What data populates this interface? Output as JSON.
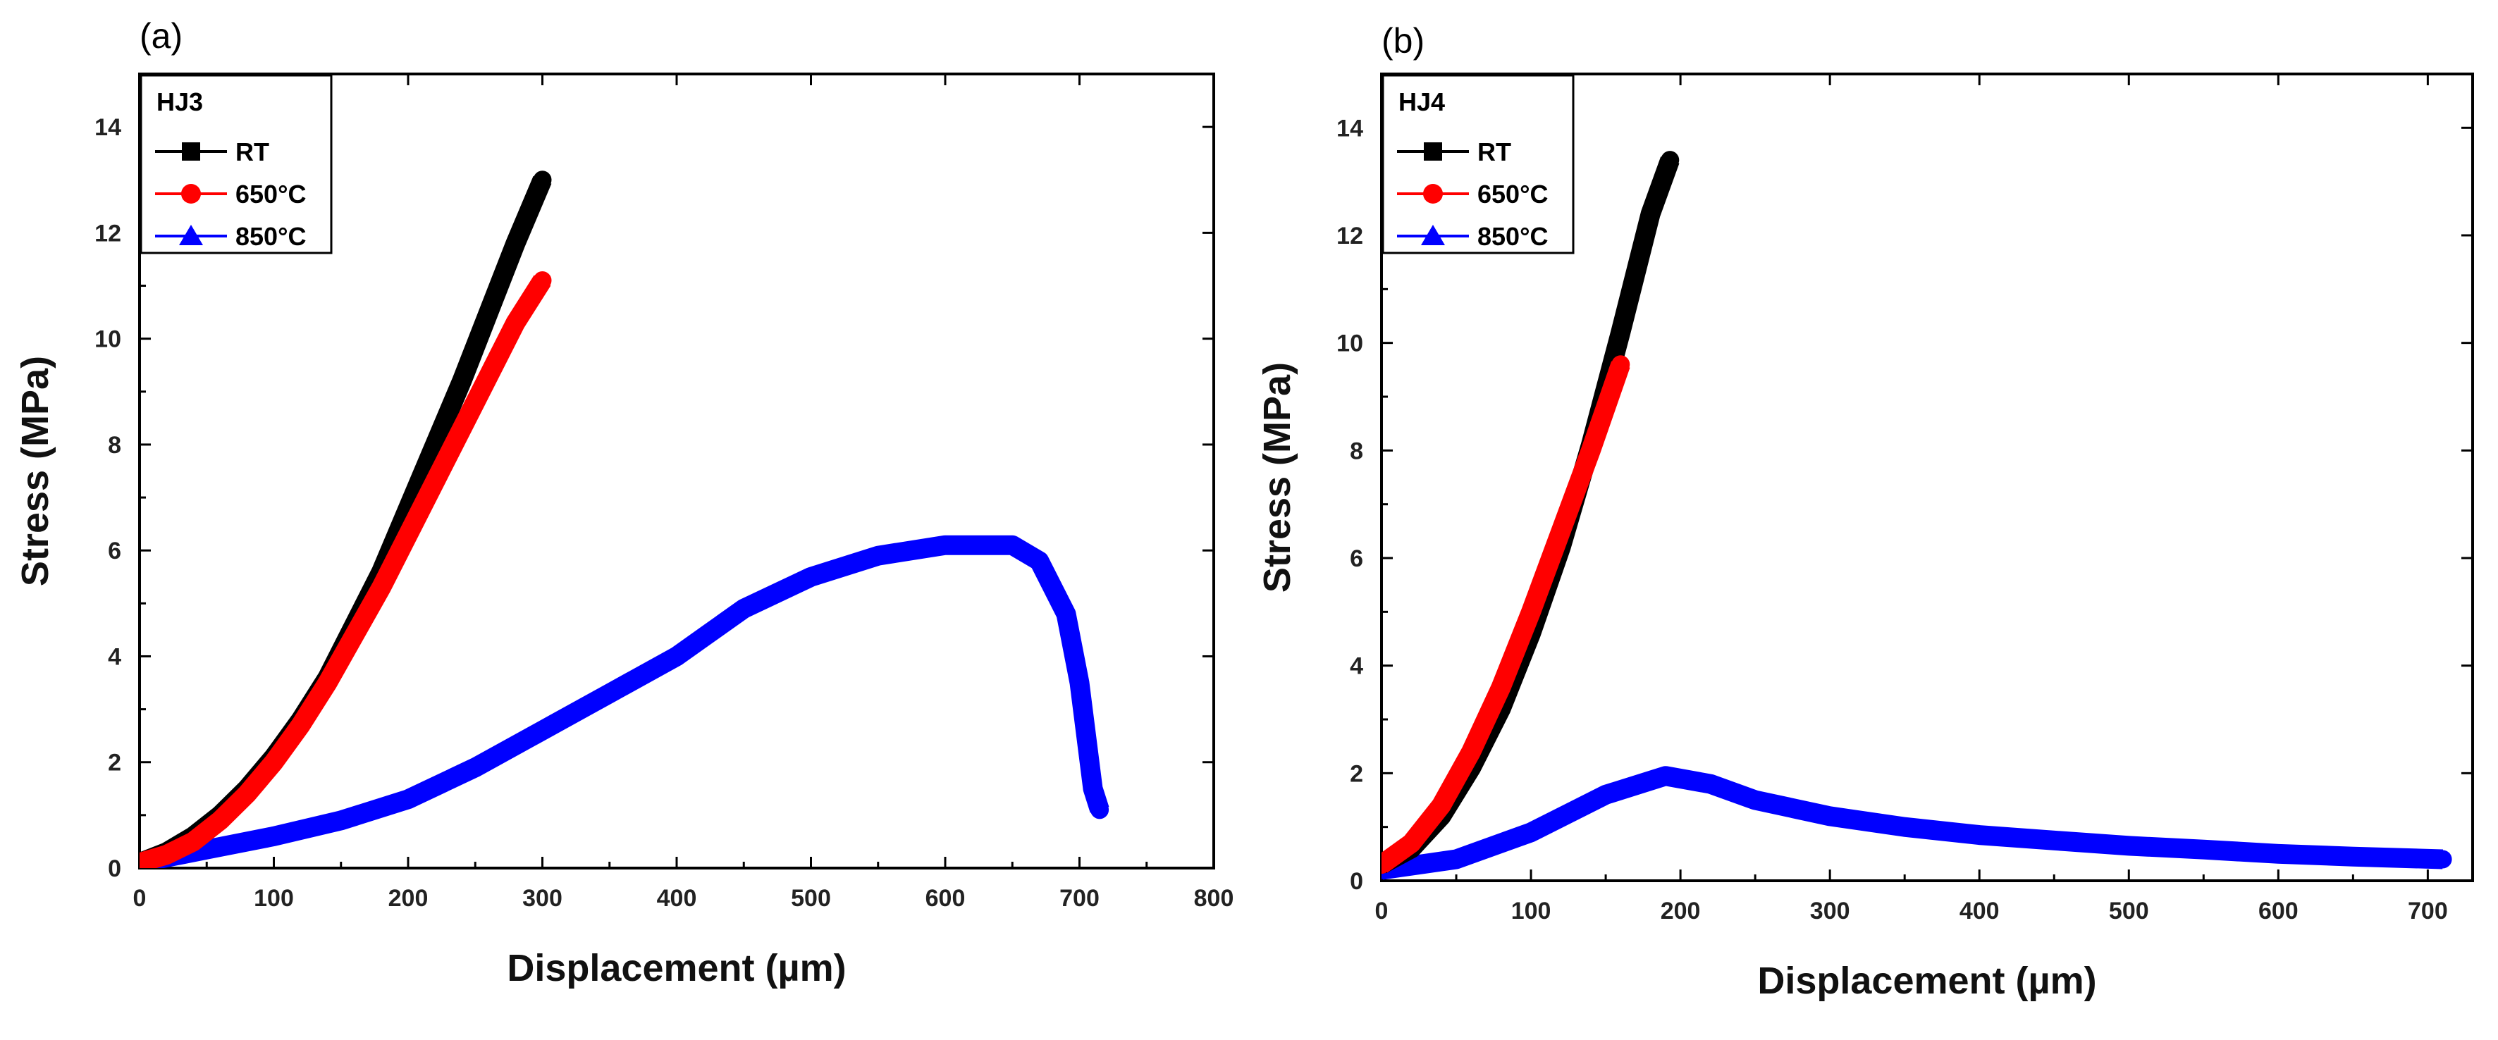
{
  "chart_data": [
    {
      "type": "line",
      "panel_label": "(a)",
      "legend_title": "HJ3",
      "xlabel": "Displacement (µm)",
      "ylabel": "Stress (MPa)",
      "xlim": [
        0,
        800
      ],
      "ylim": [
        0,
        15
      ],
      "xticks": [
        0,
        100,
        200,
        300,
        400,
        500,
        600,
        700,
        800
      ],
      "yticks": [
        0,
        2,
        4,
        6,
        8,
        10,
        12,
        14
      ],
      "legend_placement": "top-left",
      "grid": false,
      "series": [
        {
          "name": "RT",
          "color": "#000000",
          "marker": "square",
          "x": [
            0,
            20,
            40,
            60,
            80,
            100,
            120,
            140,
            160,
            180,
            200,
            220,
            240,
            260,
            280,
            300
          ],
          "y": [
            0.1,
            0.3,
            0.6,
            1.0,
            1.5,
            2.1,
            2.8,
            3.6,
            4.6,
            5.6,
            6.8,
            8.0,
            9.2,
            10.5,
            11.8,
            13.0
          ]
        },
        {
          "name": "650°C",
          "color": "#ff0000",
          "marker": "circle",
          "x": [
            0,
            20,
            40,
            60,
            80,
            100,
            120,
            140,
            160,
            180,
            200,
            220,
            240,
            260,
            280,
            300
          ],
          "y": [
            0.1,
            0.25,
            0.5,
            0.9,
            1.4,
            2.0,
            2.7,
            3.5,
            4.4,
            5.3,
            6.3,
            7.3,
            8.3,
            9.3,
            10.3,
            11.1
          ]
        },
        {
          "name": "850°C",
          "color": "#0000ff",
          "marker": "triangle",
          "x": [
            0,
            50,
            100,
            150,
            200,
            250,
            300,
            350,
            400,
            450,
            500,
            550,
            600,
            650,
            670,
            690,
            700,
            705,
            710,
            715
          ],
          "y": [
            0.1,
            0.35,
            0.6,
            0.9,
            1.3,
            1.9,
            2.6,
            3.3,
            4.0,
            4.9,
            5.5,
            5.9,
            6.1,
            6.1,
            5.8,
            4.8,
            3.5,
            2.5,
            1.5,
            1.1
          ]
        }
      ]
    },
    {
      "type": "line",
      "panel_label": "(b)",
      "legend_title": "HJ4",
      "xlabel": "Displacement (µm)",
      "ylabel": "Stress (MPa)",
      "xlim": [
        0,
        730
      ],
      "ylim": [
        0,
        15
      ],
      "xticks": [
        0,
        100,
        200,
        300,
        400,
        500,
        600,
        700
      ],
      "yticks": [
        0,
        2,
        4,
        6,
        8,
        10,
        12,
        14
      ],
      "legend_placement": "top-left",
      "grid": false,
      "series": [
        {
          "name": "RT",
          "color": "#000000",
          "marker": "square",
          "x": [
            0,
            20,
            40,
            60,
            80,
            100,
            120,
            140,
            160,
            180,
            193
          ],
          "y": [
            0.3,
            0.6,
            1.2,
            2.1,
            3.2,
            4.6,
            6.2,
            8.1,
            10.2,
            12.4,
            13.4
          ]
        },
        {
          "name": "650°C",
          "color": "#ff0000",
          "marker": "circle",
          "x": [
            0,
            20,
            40,
            60,
            80,
            100,
            120,
            140,
            160
          ],
          "y": [
            0.3,
            0.7,
            1.4,
            2.4,
            3.6,
            5.0,
            6.5,
            8.0,
            9.6
          ]
        },
        {
          "name": "850°C",
          "color": "#0000ff",
          "marker": "triangle",
          "x": [
            0,
            50,
            100,
            150,
            190,
            220,
            250,
            300,
            350,
            400,
            450,
            500,
            550,
            600,
            650,
            710
          ],
          "y": [
            0.2,
            0.4,
            0.9,
            1.6,
            1.95,
            1.8,
            1.5,
            1.2,
            1.0,
            0.85,
            0.75,
            0.65,
            0.58,
            0.5,
            0.45,
            0.4
          ]
        }
      ]
    }
  ]
}
